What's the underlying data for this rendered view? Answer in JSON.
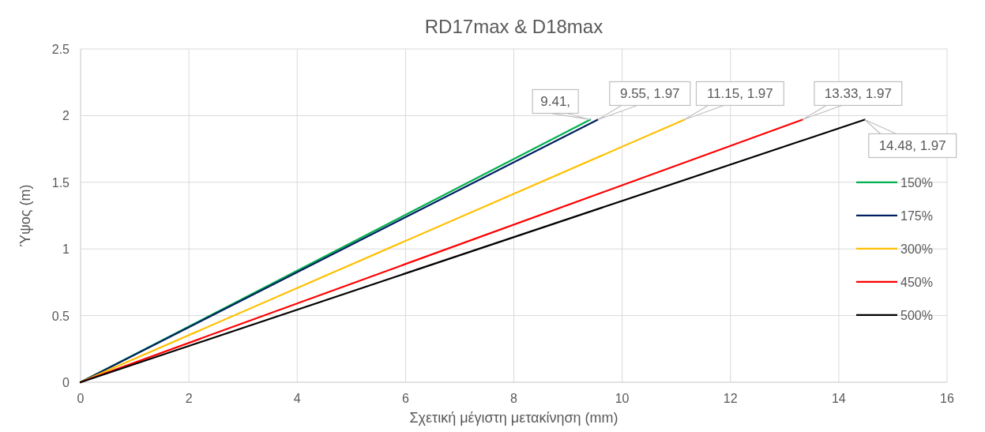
{
  "chart_data": {
    "type": "line",
    "title": "RD17max & D18max",
    "xlabel": "Σχετική μέγιστη μετακίνηση (mm)",
    "ylabel": "Ύψος (m)",
    "xlim": [
      0,
      16
    ],
    "xticks": [
      0,
      2,
      4,
      6,
      8,
      10,
      12,
      14,
      16
    ],
    "ylim": [
      0,
      2.5
    ],
    "yticks": [
      0,
      0.5,
      1,
      1.5,
      2,
      2.5
    ],
    "grid": true,
    "legend": "right",
    "marker": "none",
    "line_style": "solid",
    "series": [
      {
        "name": "150%",
        "color": "#00b050",
        "x": [
          0,
          9.41
        ],
        "values": [
          0,
          1.97
        ]
      },
      {
        "name": "175%",
        "color": "#002060",
        "x": [
          0,
          9.55
        ],
        "values": [
          0,
          1.97
        ]
      },
      {
        "name": "300%",
        "color": "#ffc000",
        "x": [
          0,
          11.15
        ],
        "values": [
          0,
          1.97
        ]
      },
      {
        "name": "450%",
        "color": "#ff0000",
        "x": [
          0,
          13.33
        ],
        "values": [
          0,
          1.97
        ]
      },
      {
        "name": "500%",
        "color": "#000000",
        "x": [
          0,
          14.48
        ],
        "values": [
          0,
          1.97
        ]
      }
    ],
    "annotations": [
      {
        "text": "9.41,",
        "x": 9.41,
        "y": 1.97
      },
      {
        "text": "9.55, 1.97",
        "x": 9.55,
        "y": 1.97
      },
      {
        "text": "11.15, 1.97",
        "x": 11.15,
        "y": 1.97
      },
      {
        "text": "13.33, 1.97",
        "x": 13.33,
        "y": 1.97
      },
      {
        "text": "14.48, 1.97",
        "x": 14.48,
        "y": 1.97
      }
    ]
  }
}
